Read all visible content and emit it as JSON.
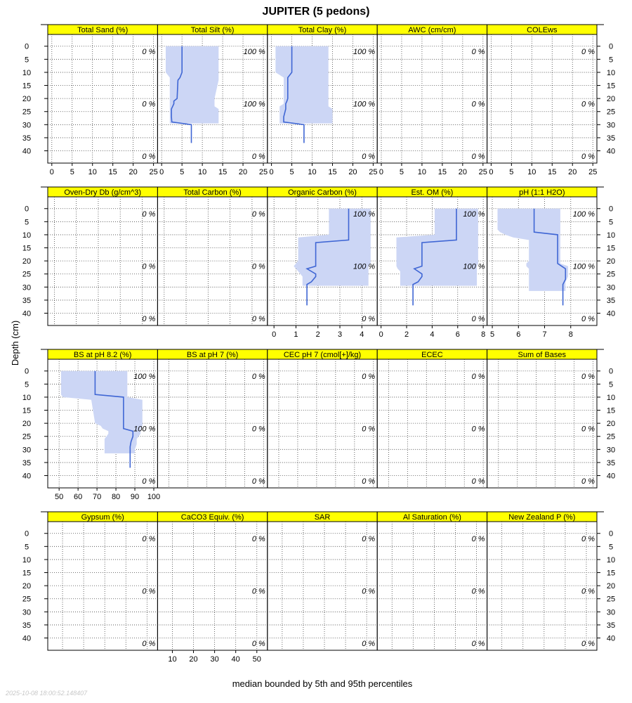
{
  "title": "JUPITER (5 pedons)",
  "ylabel": "Depth (cm)",
  "xlabel": "median bounded by 5th and 95th percentiles",
  "timestamp": "2025-10-08 18:00:52.148407",
  "colors": {
    "strip": "#FFFF00",
    "band": "#CCD6F5",
    "line": "#3F66D4",
    "grid": "#444444"
  },
  "chart_data": {
    "type": "line",
    "y_ticks": [
      0,
      5,
      10,
      15,
      20,
      25,
      30,
      35,
      40
    ],
    "ylim": [
      44.7,
      -4.5
    ],
    "pct_depth_labels": [
      2,
      22,
      42
    ],
    "rows": [
      {
        "panels": [
          {
            "name": "Total Sand (%)",
            "pct": [
              "0 %",
              "0 %",
              "0 %"
            ]
          },
          {
            "name": "Total Silt (%)",
            "pct": [
              "100 %",
              "100 %",
              "0 %"
            ]
          },
          {
            "name": "Total Clay (%)",
            "pct": [
              "100 %",
              "100 %",
              "0 %"
            ]
          },
          {
            "name": "AWC (cm/cm)",
            "pct": [
              "0 %",
              "0 %",
              "0 %"
            ]
          },
          {
            "name": "COLEws",
            "pct": [
              "0 %",
              "0 %",
              "0 %"
            ]
          }
        ],
        "axis": {
          "xlim": [
            -1,
            26
          ],
          "ticks": [
            0,
            5,
            10,
            15,
            20,
            25
          ],
          "labels": [
            "0",
            "5",
            "10",
            "15",
            "20",
            "25"
          ],
          "ncols": 2
        },
        "series": {
          "Total Silt (%)": {
            "depth": [
              0,
              8,
              10,
              12,
              13,
              20,
              21,
              22,
              23,
              24,
              26,
              27,
              28
            ],
            "median": [
              5,
              5,
              5,
              5,
              4,
              3,
              3,
              3,
              3,
              2,
              2,
              2,
              2
            ],
            "low": [
              1,
              1,
              1,
              2,
              2,
              2,
              2,
              2,
              2,
              2,
              2,
              2,
              2
            ],
            "high": [
              14,
              14,
              14,
              14,
              14,
              13,
              13,
              13,
              13,
              14,
              14,
              14,
              14
            ],
            "line_depth": [
              0,
              10,
              12,
              13,
              20,
              21,
              22,
              24,
              27,
              29,
              30,
              37
            ],
            "line_median": [
              5,
              5,
              4.5,
              4,
              3.8,
              3,
              3,
              2.4,
              2.4,
              2.5,
              7.3,
              7.3
            ]
          },
          "Total Clay (%)": {
            "depth": [
              0,
              8,
              10,
              12,
              13,
              20,
              21,
              22,
              23,
              24,
              26,
              27,
              28
            ],
            "median": [
              5,
              5,
              4,
              4,
              4,
              4,
              3,
              3,
              3,
              3,
              3,
              3,
              3
            ],
            "low": [
              1,
              1,
              1,
              3,
              3,
              3,
              3,
              3,
              2,
              2,
              2,
              2,
              2
            ],
            "high": [
              14,
              14,
              14,
              14,
              14,
              14,
              14,
              14,
              14,
              15,
              15,
              15,
              15
            ],
            "line_depth": [
              0,
              10,
              12,
              13,
              20,
              21,
              22,
              24,
              27,
              29,
              30,
              37
            ],
            "line_median": [
              5,
              5,
              4,
              4,
              4,
              3.8,
              3.5,
              3.5,
              3,
              3,
              8,
              8
            ]
          }
        }
      },
      {
        "panels": [
          {
            "name": "Oven-Dry Db (g/cm^3)",
            "pct": [
              "0 %",
              "0 %",
              "0 %"
            ]
          },
          {
            "name": "Total Carbon (%)",
            "pct": [
              "0 %",
              "0 %",
              "0 %"
            ]
          },
          {
            "name": "Organic Carbon (%)",
            "pct": [
              "100 %",
              "100 %",
              "0 %"
            ]
          },
          {
            "name": "Est. OM (%)",
            "pct": [
              "100 %",
              "100 %",
              "0 %"
            ]
          },
          {
            "name": "pH (1:1 H2O)",
            "pct": [
              "100 %",
              "100 %",
              "0 %"
            ]
          }
        ],
        "axes": [
          {
            "panel": 2,
            "xlim": [
              -0.3,
              4.7
            ],
            "ticks": [
              0,
              1,
              2,
              3,
              4
            ],
            "labels": [
              "0",
              "1",
              "2",
              "3",
              "4"
            ]
          },
          {
            "panel": 3,
            "xlim": [
              -0.3,
              8.3
            ],
            "ticks": [
              0,
              2,
              4,
              6,
              8
            ],
            "labels": [
              "0",
              "2",
              "4",
              "6",
              "8"
            ]
          },
          {
            "panel": 4,
            "xlim": [
              4.8,
              9.0
            ],
            "ticks": [
              5,
              6,
              7,
              8
            ],
            "labels": [
              "5",
              "6",
              "7",
              "8"
            ]
          }
        ],
        "series": {
          "Organic Carbon (%)": {
            "depth": [
              0,
              10,
              11,
              20,
              21,
              22,
              23,
              24,
              26,
              28
            ],
            "median": [
              3.4,
              3.4,
              1.9,
              1.9,
              1.9,
              1.5,
              1.9,
              1.6,
              1.6,
              1.6
            ],
            "low": [
              2.5,
              2.5,
              1.1,
              1.1,
              1.0,
              0.9,
              1.0,
              1.1,
              1.3,
              1.3
            ],
            "high": [
              4.4,
              4.4,
              4.4,
              4.4,
              4.4,
              4.3,
              4.3,
              4.3,
              4.3,
              4.3
            ],
            "line_depth": [
              0,
              12,
              13,
              22,
              23,
              25,
              26,
              28,
              29,
              37
            ],
            "line_median": [
              3.4,
              3.4,
              1.9,
              1.9,
              1.5,
              1.9,
              1.9,
              1.7,
              1.5,
              1.5
            ]
          },
          "Est. OM (%)": {
            "depth": [
              0,
              10,
              11,
              20,
              21,
              22,
              23,
              24,
              26,
              28
            ],
            "median": [
              5.9,
              5.9,
              3.4,
              3.4,
              3.4,
              2.5,
              3.4,
              2.8,
              2.8,
              2.8
            ],
            "low": [
              4.2,
              4.2,
              1.2,
              1.2,
              1.2,
              1.2,
              1.3,
              1.5,
              1.5,
              1.5
            ],
            "high": [
              7.6,
              7.6,
              7.6,
              7.6,
              7.6,
              7.5,
              7.5,
              7.5,
              7.5,
              7.5
            ],
            "line_depth": [
              0,
              12,
              13,
              22,
              23,
              25,
              26,
              28,
              29,
              37
            ],
            "line_median": [
              5.9,
              5.9,
              3.2,
              3.2,
              2.6,
              3.2,
              3.2,
              2.9,
              2.5,
              2.5
            ]
          },
          "pH (1:1 H2O)": {
            "depth": [
              0,
              8,
              9,
              10,
              11,
              12,
              20,
              21,
              22,
              23,
              24,
              26,
              28,
              30
            ],
            "median": [
              6.6,
              6.6,
              6.6,
              7.5,
              7.5,
              7.5,
              7.5,
              7.5,
              7.5,
              7.8,
              7.8,
              7.8,
              7.7,
              7.7
            ],
            "low": [
              5.2,
              5.2,
              5.3,
              5.5,
              5.8,
              6.4,
              6.4,
              6.3,
              6.3,
              6.4,
              6.4,
              6.4,
              6.4,
              6.4
            ],
            "high": [
              7.6,
              7.6,
              7.6,
              7.6,
              7.6,
              7.6,
              7.6,
              7.6,
              7.9,
              7.9,
              7.9,
              7.9,
              7.8,
              7.8
            ],
            "line_depth": [
              0,
              9,
              10,
              21,
              23,
              27,
              29,
              37
            ],
            "line_median": [
              6.6,
              6.6,
              7.5,
              7.5,
              7.8,
              7.8,
              7.7,
              7.7
            ]
          }
        }
      },
      {
        "panels": [
          {
            "name": "BS at pH 8.2 (%)",
            "pct": [
              "100 %",
              "100 %",
              "0 %"
            ]
          },
          {
            "name": "BS at pH 7 (%)",
            "pct": [
              "0 %",
              "0 %",
              "0 %"
            ]
          },
          {
            "name": "CEC pH 7 (cmol[+]/kg)",
            "pct": [
              "0 %",
              "0 %",
              "0 %"
            ]
          },
          {
            "name": "ECEC",
            "pct": [
              "0 %",
              "0 %",
              "0 %"
            ]
          },
          {
            "name": "Sum of Bases",
            "pct": [
              "0 %",
              "0 %",
              "0 %"
            ]
          }
        ],
        "axis": {
          "panel": 0,
          "xlim": [
            44,
            102
          ],
          "ticks": [
            50,
            60,
            70,
            80,
            90,
            100
          ],
          "labels": [
            "50",
            "60",
            "70",
            "80",
            "90",
            "100"
          ]
        },
        "series": {
          "BS at pH 8.2 (%)": {
            "depth": [
              0,
              9,
              10,
              11,
              20,
              21,
              22,
              23,
              24,
              26,
              28,
              30
            ],
            "median": [
              69,
              69,
              84,
              84,
              84,
              84,
              88,
              88,
              88,
              88,
              87,
              87
            ],
            "low": [
              51,
              51,
              52,
              67,
              69,
              72,
              73,
              76,
              76,
              74,
              74,
              74
            ],
            "high": [
              86,
              86,
              86,
              94,
              94,
              94,
              93,
              93,
              93,
              91,
              91,
              90
            ],
            "line_depth": [
              0,
              9,
              10,
              22,
              23,
              25,
              27,
              29,
              37
            ],
            "line_median": [
              69,
              69,
              84,
              84,
              89,
              89,
              88,
              87.5,
              87.5
            ]
          }
        }
      },
      {
        "panels": [
          {
            "name": "Gypsum (%)",
            "pct": [
              "0 %",
              "0 %",
              "0 %"
            ]
          },
          {
            "name": "CaCO3 Equiv. (%)",
            "pct": [
              "0 %",
              "0 %",
              "0 %"
            ]
          },
          {
            "name": "SAR",
            "pct": [
              "0 %",
              "0 %",
              "0 %"
            ]
          },
          {
            "name": "Al Saturation (%)",
            "pct": [
              "0 %",
              "0 %",
              "0 %"
            ]
          },
          {
            "name": "New Zealand P (%)",
            "pct": [
              "0 %",
              "0 %",
              "0 %"
            ]
          }
        ],
        "axis": {
          "panel": 1,
          "xlim": [
            3,
            55
          ],
          "ticks": [
            10,
            20,
            30,
            40,
            50
          ],
          "labels": [
            "10",
            "20",
            "30",
            "40",
            "50"
          ]
        },
        "series": {}
      }
    ]
  }
}
